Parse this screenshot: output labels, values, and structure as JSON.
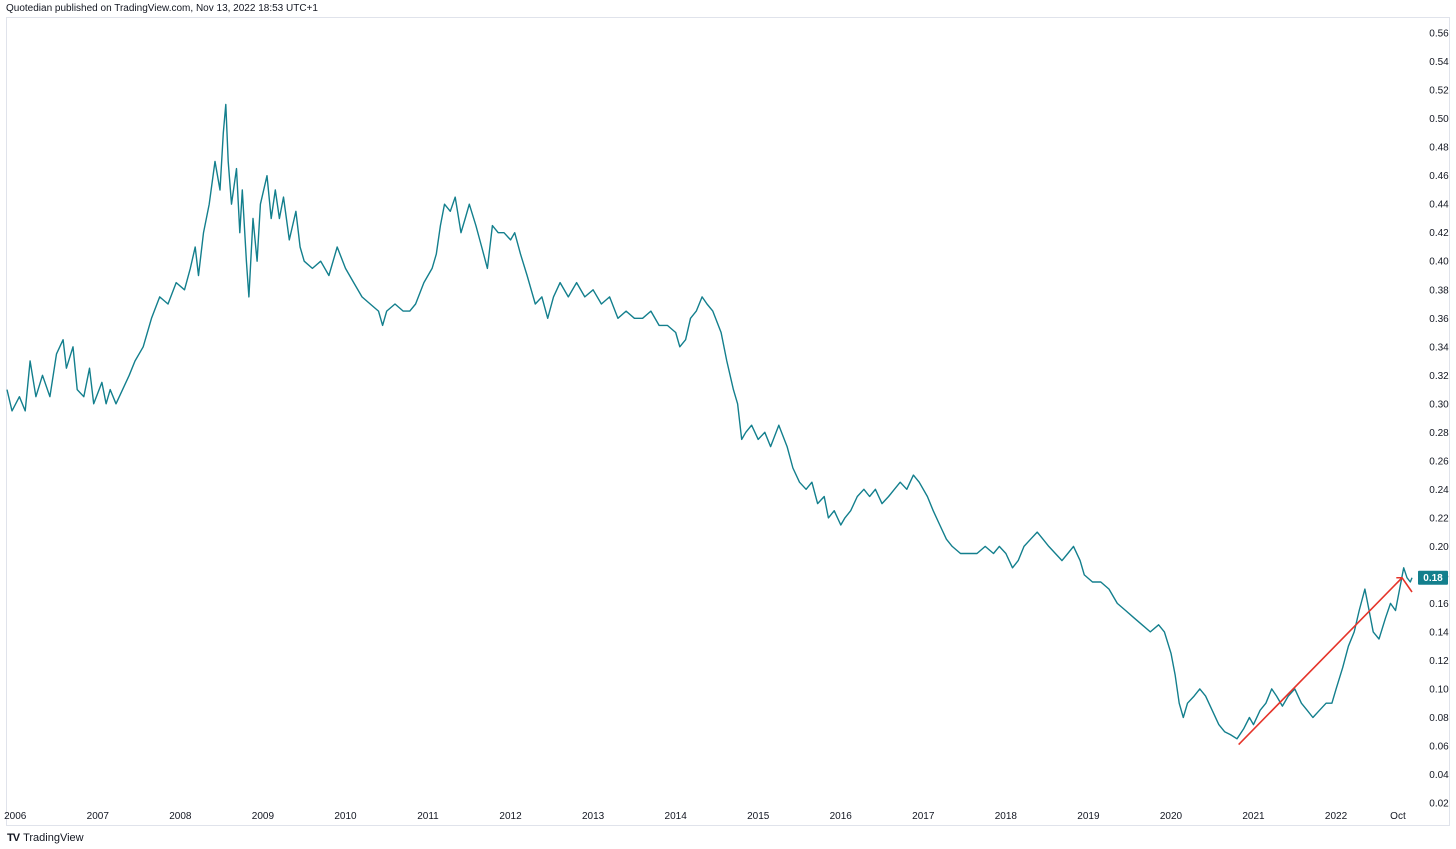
{
  "header": {
    "text": "Quotedian published on TradingView.com, Nov 13, 2022 18:53 UTC+1"
  },
  "footer": {
    "logo": "TV",
    "label": "TradingView"
  },
  "colors": {
    "series": "#137f8d",
    "trendline": "#e5342a",
    "axis_text": "#131722",
    "border": "#e0e3eb"
  },
  "chart_data": {
    "type": "line",
    "ylim": [
      0.02,
      0.56
    ],
    "ytick_step": 0.02,
    "x_range": [
      2005.9,
      2022.92
    ],
    "x_ticks": [
      {
        "value": 2006,
        "label": "2006"
      },
      {
        "value": 2007,
        "label": "2007"
      },
      {
        "value": 2008,
        "label": "2008"
      },
      {
        "value": 2009,
        "label": "2009"
      },
      {
        "value": 2010,
        "label": "2010"
      },
      {
        "value": 2011,
        "label": "2011"
      },
      {
        "value": 2012,
        "label": "2012"
      },
      {
        "value": 2013,
        "label": "2013"
      },
      {
        "value": 2014,
        "label": "2014"
      },
      {
        "value": 2015,
        "label": "2015"
      },
      {
        "value": 2016,
        "label": "2016"
      },
      {
        "value": 2017,
        "label": "2017"
      },
      {
        "value": 2018,
        "label": "2018"
      },
      {
        "value": 2019,
        "label": "2019"
      },
      {
        "value": 2020,
        "label": "2020"
      },
      {
        "value": 2021,
        "label": "2021"
      },
      {
        "value": 2022,
        "label": "2022"
      },
      {
        "value": 2022.75,
        "label": "Oct"
      }
    ],
    "last_value_label": "0.18",
    "last_value": 0.178,
    "series": [
      {
        "points": [
          [
            2005.9,
            0.31
          ],
          [
            2005.96,
            0.295
          ],
          [
            2006.05,
            0.305
          ],
          [
            2006.12,
            0.295
          ],
          [
            2006.18,
            0.33
          ],
          [
            2006.25,
            0.305
          ],
          [
            2006.33,
            0.32
          ],
          [
            2006.42,
            0.305
          ],
          [
            2006.5,
            0.335
          ],
          [
            2006.58,
            0.345
          ],
          [
            2006.62,
            0.325
          ],
          [
            2006.7,
            0.34
          ],
          [
            2006.75,
            0.31
          ],
          [
            2006.83,
            0.305
          ],
          [
            2006.9,
            0.325
          ],
          [
            2006.95,
            0.3
          ],
          [
            2007.05,
            0.315
          ],
          [
            2007.1,
            0.3
          ],
          [
            2007.15,
            0.31
          ],
          [
            2007.22,
            0.3
          ],
          [
            2007.3,
            0.31
          ],
          [
            2007.38,
            0.32
          ],
          [
            2007.45,
            0.33
          ],
          [
            2007.55,
            0.34
          ],
          [
            2007.65,
            0.36
          ],
          [
            2007.75,
            0.375
          ],
          [
            2007.85,
            0.37
          ],
          [
            2007.95,
            0.385
          ],
          [
            2008.05,
            0.38
          ],
          [
            2008.12,
            0.395
          ],
          [
            2008.18,
            0.41
          ],
          [
            2008.22,
            0.39
          ],
          [
            2008.28,
            0.42
          ],
          [
            2008.35,
            0.44
          ],
          [
            2008.42,
            0.47
          ],
          [
            2008.48,
            0.45
          ],
          [
            2008.52,
            0.49
          ],
          [
            2008.55,
            0.51
          ],
          [
            2008.58,
            0.47
          ],
          [
            2008.62,
            0.44
          ],
          [
            2008.68,
            0.465
          ],
          [
            2008.72,
            0.42
          ],
          [
            2008.75,
            0.45
          ],
          [
            2008.8,
            0.4
          ],
          [
            2008.83,
            0.375
          ],
          [
            2008.88,
            0.43
          ],
          [
            2008.93,
            0.4
          ],
          [
            2008.97,
            0.44
          ],
          [
            2009.05,
            0.46
          ],
          [
            2009.1,
            0.43
          ],
          [
            2009.15,
            0.45
          ],
          [
            2009.2,
            0.43
          ],
          [
            2009.25,
            0.445
          ],
          [
            2009.32,
            0.415
          ],
          [
            2009.4,
            0.435
          ],
          [
            2009.45,
            0.41
          ],
          [
            2009.5,
            0.4
          ],
          [
            2009.6,
            0.395
          ],
          [
            2009.7,
            0.4
          ],
          [
            2009.8,
            0.39
          ],
          [
            2009.9,
            0.41
          ],
          [
            2010.0,
            0.395
          ],
          [
            2010.1,
            0.385
          ],
          [
            2010.2,
            0.375
          ],
          [
            2010.3,
            0.37
          ],
          [
            2010.4,
            0.365
          ],
          [
            2010.45,
            0.355
          ],
          [
            2010.5,
            0.365
          ],
          [
            2010.6,
            0.37
          ],
          [
            2010.7,
            0.365
          ],
          [
            2010.78,
            0.365
          ],
          [
            2010.85,
            0.37
          ],
          [
            2010.95,
            0.385
          ],
          [
            2011.05,
            0.395
          ],
          [
            2011.1,
            0.405
          ],
          [
            2011.15,
            0.425
          ],
          [
            2011.2,
            0.44
          ],
          [
            2011.27,
            0.435
          ],
          [
            2011.33,
            0.445
          ],
          [
            2011.4,
            0.42
          ],
          [
            2011.45,
            0.43
          ],
          [
            2011.5,
            0.44
          ],
          [
            2011.58,
            0.425
          ],
          [
            2011.65,
            0.41
          ],
          [
            2011.72,
            0.395
          ],
          [
            2011.78,
            0.425
          ],
          [
            2011.85,
            0.42
          ],
          [
            2011.92,
            0.42
          ],
          [
            2012.0,
            0.415
          ],
          [
            2012.05,
            0.42
          ],
          [
            2012.12,
            0.405
          ],
          [
            2012.2,
            0.39
          ],
          [
            2012.25,
            0.38
          ],
          [
            2012.3,
            0.37
          ],
          [
            2012.38,
            0.375
          ],
          [
            2012.45,
            0.36
          ],
          [
            2012.52,
            0.375
          ],
          [
            2012.6,
            0.385
          ],
          [
            2012.7,
            0.375
          ],
          [
            2012.8,
            0.385
          ],
          [
            2012.9,
            0.375
          ],
          [
            2013.0,
            0.38
          ],
          [
            2013.1,
            0.37
          ],
          [
            2013.2,
            0.375
          ],
          [
            2013.3,
            0.36
          ],
          [
            2013.4,
            0.365
          ],
          [
            2013.5,
            0.36
          ],
          [
            2013.6,
            0.36
          ],
          [
            2013.7,
            0.365
          ],
          [
            2013.8,
            0.355
          ],
          [
            2013.9,
            0.355
          ],
          [
            2014.0,
            0.35
          ],
          [
            2014.05,
            0.34
          ],
          [
            2014.12,
            0.345
          ],
          [
            2014.18,
            0.36
          ],
          [
            2014.25,
            0.365
          ],
          [
            2014.32,
            0.375
          ],
          [
            2014.38,
            0.37
          ],
          [
            2014.45,
            0.365
          ],
          [
            2014.55,
            0.35
          ],
          [
            2014.62,
            0.33
          ],
          [
            2014.7,
            0.31
          ],
          [
            2014.75,
            0.3
          ],
          [
            2014.8,
            0.275
          ],
          [
            2014.85,
            0.28
          ],
          [
            2014.92,
            0.285
          ],
          [
            2015.0,
            0.275
          ],
          [
            2015.08,
            0.28
          ],
          [
            2015.15,
            0.27
          ],
          [
            2015.25,
            0.285
          ],
          [
            2015.35,
            0.27
          ],
          [
            2015.42,
            0.255
          ],
          [
            2015.5,
            0.245
          ],
          [
            2015.58,
            0.24
          ],
          [
            2015.65,
            0.245
          ],
          [
            2015.72,
            0.23
          ],
          [
            2015.8,
            0.235
          ],
          [
            2015.85,
            0.22
          ],
          [
            2015.92,
            0.225
          ],
          [
            2016.0,
            0.215
          ],
          [
            2016.05,
            0.22
          ],
          [
            2016.12,
            0.225
          ],
          [
            2016.2,
            0.235
          ],
          [
            2016.28,
            0.24
          ],
          [
            2016.35,
            0.235
          ],
          [
            2016.42,
            0.24
          ],
          [
            2016.5,
            0.23
          ],
          [
            2016.58,
            0.235
          ],
          [
            2016.65,
            0.24
          ],
          [
            2016.72,
            0.245
          ],
          [
            2016.8,
            0.24
          ],
          [
            2016.88,
            0.25
          ],
          [
            2016.95,
            0.245
          ],
          [
            2017.05,
            0.235
          ],
          [
            2017.12,
            0.225
          ],
          [
            2017.2,
            0.215
          ],
          [
            2017.28,
            0.205
          ],
          [
            2017.35,
            0.2
          ],
          [
            2017.45,
            0.195
          ],
          [
            2017.55,
            0.195
          ],
          [
            2017.65,
            0.195
          ],
          [
            2017.75,
            0.2
          ],
          [
            2017.85,
            0.195
          ],
          [
            2017.92,
            0.2
          ],
          [
            2018.0,
            0.195
          ],
          [
            2018.08,
            0.185
          ],
          [
            2018.15,
            0.19
          ],
          [
            2018.22,
            0.2
          ],
          [
            2018.3,
            0.205
          ],
          [
            2018.38,
            0.21
          ],
          [
            2018.45,
            0.205
          ],
          [
            2018.52,
            0.2
          ],
          [
            2018.6,
            0.195
          ],
          [
            2018.68,
            0.19
          ],
          [
            2018.75,
            0.195
          ],
          [
            2018.82,
            0.2
          ],
          [
            2018.9,
            0.19
          ],
          [
            2018.95,
            0.18
          ],
          [
            2019.05,
            0.175
          ],
          [
            2019.15,
            0.175
          ],
          [
            2019.25,
            0.17
          ],
          [
            2019.35,
            0.16
          ],
          [
            2019.45,
            0.155
          ],
          [
            2019.55,
            0.15
          ],
          [
            2019.65,
            0.145
          ],
          [
            2019.75,
            0.14
          ],
          [
            2019.85,
            0.145
          ],
          [
            2019.92,
            0.14
          ],
          [
            2020.0,
            0.125
          ],
          [
            2020.05,
            0.11
          ],
          [
            2020.1,
            0.09
          ],
          [
            2020.15,
            0.08
          ],
          [
            2020.2,
            0.09
          ],
          [
            2020.28,
            0.095
          ],
          [
            2020.35,
            0.1
          ],
          [
            2020.42,
            0.095
          ],
          [
            2020.5,
            0.085
          ],
          [
            2020.58,
            0.075
          ],
          [
            2020.65,
            0.07
          ],
          [
            2020.72,
            0.068
          ],
          [
            2020.8,
            0.065
          ],
          [
            2020.88,
            0.072
          ],
          [
            2020.95,
            0.08
          ],
          [
            2021.0,
            0.075
          ],
          [
            2021.08,
            0.085
          ],
          [
            2021.15,
            0.09
          ],
          [
            2021.22,
            0.1
          ],
          [
            2021.28,
            0.095
          ],
          [
            2021.35,
            0.088
          ],
          [
            2021.42,
            0.095
          ],
          [
            2021.5,
            0.1
          ],
          [
            2021.58,
            0.09
          ],
          [
            2021.65,
            0.085
          ],
          [
            2021.72,
            0.08
          ],
          [
            2021.8,
            0.085
          ],
          [
            2021.88,
            0.09
          ],
          [
            2021.95,
            0.09
          ],
          [
            2022.0,
            0.1
          ],
          [
            2022.08,
            0.115
          ],
          [
            2022.15,
            0.13
          ],
          [
            2022.22,
            0.14
          ],
          [
            2022.28,
            0.155
          ],
          [
            2022.35,
            0.17
          ],
          [
            2022.4,
            0.155
          ],
          [
            2022.45,
            0.14
          ],
          [
            2022.52,
            0.135
          ],
          [
            2022.6,
            0.15
          ],
          [
            2022.66,
            0.16
          ],
          [
            2022.72,
            0.155
          ],
          [
            2022.77,
            0.17
          ],
          [
            2022.82,
            0.185
          ],
          [
            2022.86,
            0.178
          ],
          [
            2022.9,
            0.175
          ],
          [
            2022.92,
            0.178
          ]
        ]
      }
    ],
    "trendline": {
      "start": [
        2020.82,
        0.061
      ],
      "end": [
        2022.8,
        0.178
      ],
      "arrow_to": [
        2022.92,
        0.168
      ]
    }
  }
}
